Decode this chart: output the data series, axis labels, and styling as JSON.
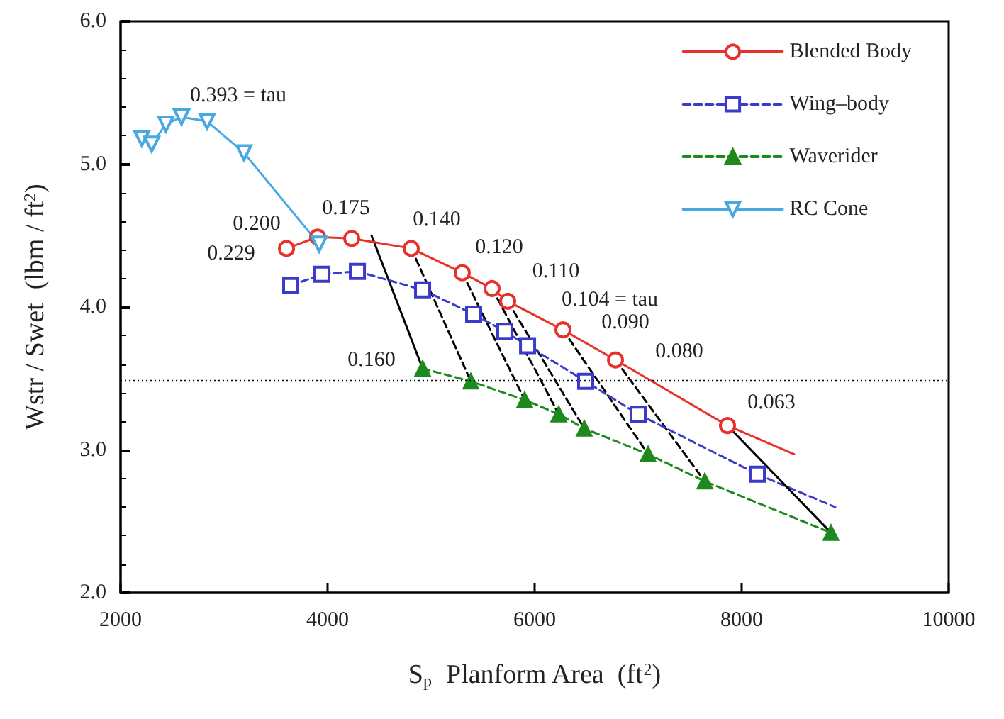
{
  "chart_data": {
    "type": "line",
    "xlabel": "S$_{p}$  Planform Area  (ft$^{2}$)",
    "ylabel": "Wstr / Swet  (lbm / ft$^{2}$)",
    "xlim": [
      2000,
      10000
    ],
    "xticks": [
      2000,
      4000,
      6000,
      8000,
      10000
    ],
    "ylim": [
      2.0,
      6.0
    ],
    "yticks": [
      {
        "value": 2,
        "label": "2.0"
      },
      {
        "value": 3,
        "label": "3.0"
      },
      {
        "value": 4,
        "label": "4.0"
      },
      {
        "value": 5,
        "label": "5.0"
      },
      {
        "value": 6,
        "label": "6.0"
      }
    ],
    "grid": false,
    "legend": "top right",
    "series": [
      {
        "name": "Blended Body",
        "color": "#e8312a",
        "marker": "circle",
        "line_style": "solid",
        "x": [
          3603,
          3904,
          4233,
          4808,
          5301,
          5589,
          5740,
          6274,
          6781,
          7863
        ],
        "values": [
          4.41,
          4.49,
          4.48,
          4.41,
          4.24,
          4.13,
          4.04,
          3.84,
          3.63,
          3.17
        ]
      },
      {
        "name": "Wing–body",
        "color": "#3a3acb",
        "marker": "square",
        "line_style": "dashed",
        "x": [
          3644,
          3945,
          4288,
          4918,
          5411,
          5712,
          5932,
          6493,
          7000,
          8151
        ],
        "values": [
          4.15,
          4.23,
          4.25,
          4.12,
          3.95,
          3.83,
          3.73,
          3.48,
          3.25,
          2.83
        ]
      },
      {
        "name": "Waverider",
        "color": "#1e8a1e",
        "marker": "triangle",
        "line_style": "dashed",
        "x": [
          4918,
          5384,
          5904,
          6233,
          6479,
          7096,
          7644,
          8863
        ],
        "values": [
          3.57,
          3.48,
          3.35,
          3.25,
          3.15,
          2.97,
          2.78,
          2.42
        ]
      },
      {
        "name": "RC Cone",
        "color": "#4aa8e0",
        "marker": "triangle-down",
        "line_style": "solid",
        "x": [
          2205,
          2301,
          2438,
          2589,
          2836,
          3192,
          3918
        ],
        "values": [
          5.18,
          5.14,
          5.28,
          5.33,
          5.3,
          5.08,
          4.44
        ]
      },
      {
        "color": "#e8312a",
        "marker": "none",
        "line_style": "solid",
        "x": [
          7863,
          8507
        ],
        "values": [
          3.17,
          2.97
        ]
      },
      {
        "color": "#3a3acb",
        "marker": "none",
        "line_style": "dashed",
        "x": [
          8151,
          8904
        ],
        "values": [
          2.83,
          2.6
        ]
      },
      {
        "color": "#000000",
        "marker": "none",
        "line_style": "solid",
        "x": [
          4425,
          4918
        ],
        "values": [
          4.5,
          3.57
        ]
      },
      {
        "color": "#000000",
        "marker": "none",
        "line_style": "dashed",
        "x": [
          4808,
          5384
        ],
        "values": [
          4.41,
          3.48
        ]
      },
      {
        "color": "#000000",
        "marker": "none",
        "line_style": "dashed",
        "x": [
          5301,
          5904
        ],
        "values": [
          4.24,
          3.35
        ]
      },
      {
        "color": "#000000",
        "marker": "none",
        "line_style": "dashed",
        "x": [
          5589,
          6233
        ],
        "values": [
          4.13,
          3.25
        ]
      },
      {
        "color": "#000000",
        "marker": "none",
        "line_style": "dashed",
        "x": [
          5740,
          6479
        ],
        "values": [
          4.04,
          3.15
        ]
      },
      {
        "color": "#000000",
        "marker": "none",
        "line_style": "dashed",
        "x": [
          6274,
          7096
        ],
        "values": [
          3.84,
          2.97
        ]
      },
      {
        "color": "#000000",
        "marker": "none",
        "line_style": "dashed",
        "x": [
          6781,
          7644
        ],
        "values": [
          3.63,
          2.78
        ]
      },
      {
        "color": "#000000",
        "marker": "none",
        "line_style": "solid",
        "x": [
          7863,
          8863
        ],
        "values": [
          3.17,
          2.42
        ]
      }
    ],
    "ref_lines": [
      {
        "axis": "y",
        "value": 3.49,
        "color": "#000000",
        "line_style": "dotted"
      }
    ],
    "annotations": [
      {
        "text": "0.393 = tau",
        "x": 2589,
        "y": 5.33
      },
      {
        "text": "0.200",
        "x": 3904,
        "y": 4.49
      },
      {
        "text": "0.229",
        "x": 3603,
        "y": 4.41
      },
      {
        "text": "0.175",
        "x": 4233,
        "y": 4.48
      },
      {
        "text": "0.140",
        "x": 4808,
        "y": 4.41
      },
      {
        "text": "0.120",
        "x": 5301,
        "y": 4.24
      },
      {
        "text": "0.110",
        "x": 5589,
        "y": 4.13
      },
      {
        "text": "0.104 = tau",
        "x": 5740,
        "y": 4.04
      },
      {
        "text": "0.090",
        "x": 6274,
        "y": 3.84
      },
      {
        "text": "0.080",
        "x": 6781,
        "y": 3.63
      },
      {
        "text": "0.063",
        "x": 7863,
        "y": 3.17
      },
      {
        "text": "0.160",
        "x": 4918,
        "y": 3.57
      }
    ]
  }
}
